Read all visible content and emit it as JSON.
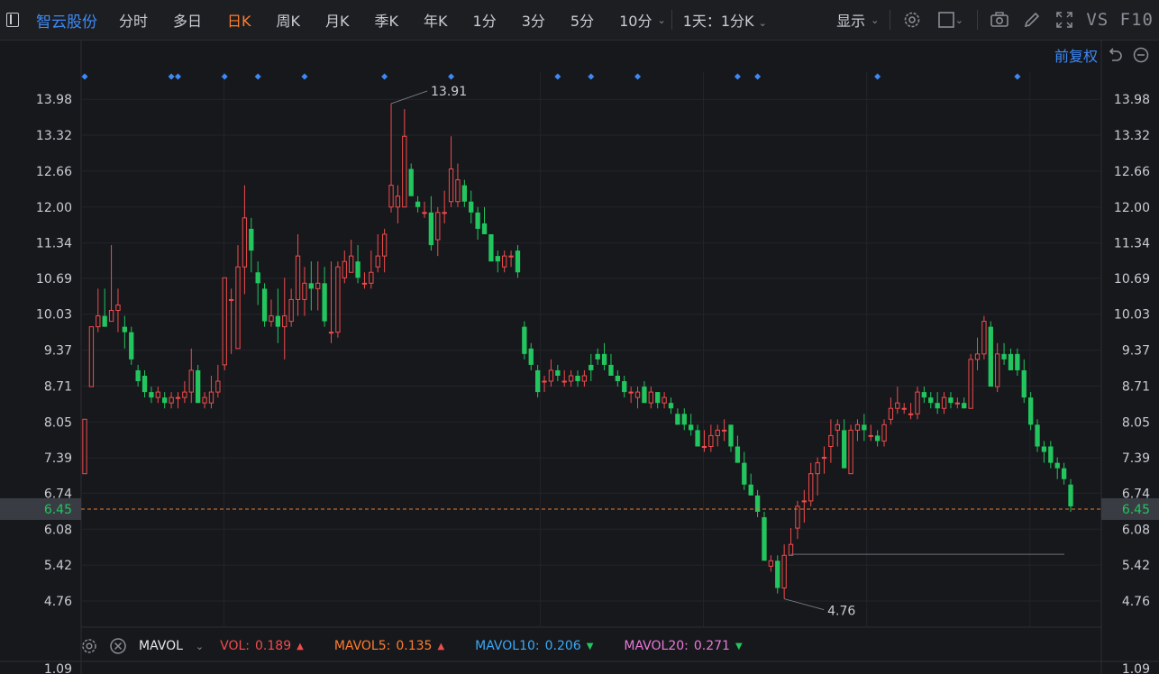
{
  "toolbar": {
    "stock_name": "智云股份",
    "periods": [
      "分时",
      "多日",
      "日K",
      "周K",
      "月K",
      "季K",
      "年K",
      "1分",
      "3分",
      "5分",
      "10分"
    ],
    "active_period": "日K",
    "minute_period_select": "1天：1分K",
    "display_label": "显示",
    "vs_f10": "VS F10"
  },
  "adjust": {
    "label": "前复权"
  },
  "colors": {
    "up": "#f04c4c",
    "down": "#22c55e",
    "accent": "#3d8af7",
    "active": "#ff7d2e",
    "price_line": "#e77b2d"
  },
  "icons": [
    "sidebar-icon",
    "gear-icon",
    "square-icon",
    "camera-icon",
    "pencil-icon",
    "fullscreen-icon",
    "undo-icon",
    "minus-circle-icon",
    "close-circle-icon"
  ],
  "chart_data": {
    "type": "candlestick",
    "y_ticks": [
      "13.98",
      "13.32",
      "12.66",
      "12.00",
      "11.34",
      "10.69",
      "10.03",
      "9.37",
      "8.71",
      "8.05",
      "7.39",
      "6.74",
      "6.08",
      "5.42",
      "4.76"
    ],
    "ylim": [
      4.28,
      14.48
    ],
    "current_price": "6.45",
    "high_label": "13.91",
    "low_label": "4.76",
    "volume_axis_top": "1.09",
    "candles": [
      [
        7.1,
        8.1,
        7.1,
        8.1
      ],
      [
        8.7,
        9.8,
        8.7,
        9.8
      ],
      [
        9.8,
        10.5,
        9.7,
        10.0
      ],
      [
        10.0,
        10.5,
        9.8,
        9.8
      ],
      [
        9.9,
        11.3,
        9.9,
        10.1
      ],
      [
        10.1,
        10.5,
        9.7,
        10.2
      ],
      [
        9.8,
        10.0,
        9.4,
        9.7
      ],
      [
        9.7,
        9.8,
        9.1,
        9.2
      ],
      [
        9.0,
        9.1,
        8.7,
        8.8
      ],
      [
        8.9,
        9.0,
        8.5,
        8.6
      ],
      [
        8.6,
        8.7,
        8.4,
        8.5
      ],
      [
        8.5,
        8.7,
        8.4,
        8.6
      ],
      [
        8.5,
        8.6,
        8.3,
        8.4
      ],
      [
        8.4,
        8.6,
        8.3,
        8.5
      ],
      [
        8.5,
        8.6,
        8.3,
        8.5
      ],
      [
        8.5,
        8.8,
        8.4,
        8.6
      ],
      [
        8.6,
        9.4,
        8.4,
        9.0
      ],
      [
        9.0,
        9.1,
        8.4,
        8.4
      ],
      [
        8.4,
        8.6,
        8.3,
        8.5
      ],
      [
        8.4,
        8.9,
        8.3,
        8.6
      ],
      [
        8.6,
        9.1,
        8.5,
        8.8
      ],
      [
        9.1,
        10.7,
        9.0,
        10.7
      ],
      [
        10.3,
        10.5,
        9.3,
        10.3
      ],
      [
        9.4,
        11.3,
        9.4,
        10.9
      ],
      [
        10.9,
        12.4,
        10.4,
        11.8
      ],
      [
        11.6,
        11.8,
        10.8,
        11.2
      ],
      [
        10.8,
        11.0,
        10.2,
        10.6
      ],
      [
        10.5,
        10.6,
        9.8,
        9.9
      ],
      [
        9.9,
        10.3,
        9.8,
        10.0
      ],
      [
        10.0,
        10.5,
        9.5,
        9.8
      ],
      [
        9.8,
        10.7,
        9.2,
        10.0
      ],
      [
        9.9,
        10.5,
        9.8,
        10.3
      ],
      [
        10.3,
        11.5,
        10.0,
        11.1
      ],
      [
        10.3,
        10.9,
        10.0,
        10.6
      ],
      [
        10.6,
        11.0,
        10.1,
        10.5
      ],
      [
        10.5,
        11.0,
        10.1,
        10.6
      ],
      [
        10.6,
        10.9,
        9.8,
        9.9
      ],
      [
        9.7,
        11.0,
        9.5,
        9.7
      ],
      [
        9.7,
        11.0,
        9.6,
        10.9
      ],
      [
        10.7,
        11.2,
        10.6,
        11.0
      ],
      [
        10.8,
        11.4,
        10.8,
        11.1
      ],
      [
        11.0,
        11.3,
        10.6,
        10.7
      ],
      [
        10.6,
        10.8,
        10.5,
        10.6
      ],
      [
        10.6,
        11.2,
        10.5,
        10.8
      ],
      [
        10.9,
        11.5,
        10.8,
        11.1
      ],
      [
        11.1,
        11.6,
        10.8,
        11.5
      ],
      [
        12.0,
        13.9,
        11.9,
        12.4
      ],
      [
        12.0,
        12.4,
        11.7,
        12.2
      ],
      [
        12.0,
        13.8,
        12.0,
        13.3
      ],
      [
        12.7,
        12.8,
        12.2,
        12.2
      ],
      [
        12.1,
        12.2,
        11.9,
        12.0
      ],
      [
        11.9,
        12.1,
        11.8,
        11.9
      ],
      [
        11.9,
        12.2,
        11.2,
        11.3
      ],
      [
        11.4,
        12.0,
        11.1,
        11.9
      ],
      [
        11.9,
        12.3,
        11.7,
        11.9
      ],
      [
        12.1,
        13.3,
        12.0,
        12.7
      ],
      [
        12.1,
        12.8,
        12.0,
        12.5
      ],
      [
        12.4,
        12.5,
        12.0,
        12.1
      ],
      [
        12.1,
        12.3,
        11.7,
        11.9
      ],
      [
        11.9,
        12.0,
        11.4,
        11.6
      ],
      [
        11.7,
        12.0,
        11.5,
        11.5
      ],
      [
        11.5,
        11.5,
        11.0,
        11.0
      ],
      [
        11.1,
        11.2,
        10.8,
        11.0
      ],
      [
        10.9,
        11.2,
        10.8,
        11.1
      ],
      [
        11.1,
        11.2,
        10.9,
        11.1
      ],
      [
        11.2,
        11.3,
        10.7,
        10.8
      ],
      [
        9.8,
        9.9,
        9.2,
        9.3
      ],
      [
        9.4,
        9.5,
        9.0,
        9.1
      ],
      [
        9.0,
        9.1,
        8.5,
        8.6
      ],
      [
        8.8,
        8.9,
        8.6,
        8.8
      ],
      [
        8.8,
        9.2,
        8.7,
        9.0
      ],
      [
        9.0,
        9.1,
        8.8,
        8.9
      ],
      [
        8.8,
        9.0,
        8.7,
        8.8
      ],
      [
        8.8,
        9.0,
        8.7,
        8.9
      ],
      [
        8.9,
        9.0,
        8.7,
        8.8
      ],
      [
        8.8,
        9.0,
        8.7,
        8.9
      ],
      [
        9.1,
        9.3,
        8.8,
        9.0
      ],
      [
        9.3,
        9.4,
        9.1,
        9.2
      ],
      [
        9.3,
        9.5,
        9.0,
        9.1
      ],
      [
        9.1,
        9.3,
        8.9,
        8.9
      ],
      [
        8.9,
        9.0,
        8.7,
        8.8
      ],
      [
        8.8,
        8.9,
        8.5,
        8.6
      ],
      [
        8.6,
        8.7,
        8.4,
        8.6
      ],
      [
        8.5,
        8.7,
        8.3,
        8.6
      ],
      [
        8.7,
        8.8,
        8.4,
        8.4
      ],
      [
        8.4,
        8.7,
        8.3,
        8.6
      ],
      [
        8.6,
        8.6,
        8.3,
        8.4
      ],
      [
        8.4,
        8.6,
        8.3,
        8.5
      ],
      [
        8.4,
        8.5,
        8.2,
        8.3
      ],
      [
        8.2,
        8.3,
        8.0,
        8.0
      ],
      [
        8.2,
        8.3,
        7.9,
        8.0
      ],
      [
        8.0,
        8.2,
        7.8,
        7.9
      ],
      [
        7.9,
        8.0,
        7.6,
        7.6
      ],
      [
        7.6,
        7.9,
        7.5,
        7.6
      ],
      [
        7.6,
        8.0,
        7.5,
        7.8
      ],
      [
        7.8,
        8.0,
        7.6,
        7.9
      ],
      [
        7.9,
        8.1,
        7.7,
        7.9
      ],
      [
        8.0,
        8.0,
        7.5,
        7.6
      ],
      [
        7.6,
        7.8,
        7.3,
        7.3
      ],
      [
        7.3,
        7.5,
        6.8,
        6.9
      ],
      [
        6.9,
        7.1,
        6.7,
        6.7
      ],
      [
        6.7,
        6.8,
        6.3,
        6.4
      ],
      [
        6.3,
        6.4,
        5.5,
        5.5
      ],
      [
        5.4,
        5.6,
        5.3,
        5.5
      ],
      [
        5.5,
        5.6,
        4.9,
        5.0
      ],
      [
        5.0,
        5.8,
        4.8,
        5.6
      ],
      [
        5.6,
        6.1,
        5.6,
        5.8
      ],
      [
        6.1,
        6.6,
        5.9,
        6.5
      ],
      [
        6.6,
        6.8,
        6.2,
        6.6
      ],
      [
        6.6,
        7.3,
        6.5,
        7.1
      ],
      [
        7.1,
        7.4,
        6.7,
        7.3
      ],
      [
        7.4,
        7.6,
        7.1,
        7.4
      ],
      [
        7.6,
        8.1,
        7.3,
        7.8
      ],
      [
        7.9,
        8.1,
        7.6,
        8.0
      ],
      [
        7.9,
        8.1,
        7.2,
        7.2
      ],
      [
        7.1,
        8.0,
        7.1,
        7.9
      ],
      [
        7.9,
        8.1,
        7.7,
        8.0
      ],
      [
        8.0,
        8.2,
        7.7,
        7.9
      ],
      [
        7.8,
        8.0,
        7.7,
        7.8
      ],
      [
        7.8,
        7.9,
        7.6,
        7.7
      ],
      [
        7.7,
        8.1,
        7.6,
        8.0
      ],
      [
        8.1,
        8.5,
        8.0,
        8.3
      ],
      [
        8.3,
        8.7,
        8.2,
        8.4
      ],
      [
        8.3,
        8.4,
        8.2,
        8.3
      ],
      [
        8.2,
        8.4,
        8.1,
        8.2
      ],
      [
        8.2,
        8.7,
        8.1,
        8.6
      ],
      [
        8.6,
        8.7,
        8.4,
        8.5
      ],
      [
        8.5,
        8.6,
        8.3,
        8.4
      ],
      [
        8.4,
        8.6,
        8.2,
        8.3
      ],
      [
        8.3,
        8.6,
        8.2,
        8.5
      ],
      [
        8.5,
        8.6,
        8.3,
        8.4
      ],
      [
        8.4,
        8.5,
        8.3,
        8.4
      ],
      [
        8.4,
        8.5,
        8.3,
        8.3
      ],
      [
        8.3,
        9.3,
        8.3,
        9.2
      ],
      [
        9.2,
        9.6,
        9.0,
        9.3
      ],
      [
        9.3,
        10.0,
        9.2,
        9.9
      ],
      [
        9.8,
        9.9,
        8.7,
        8.7
      ],
      [
        8.7,
        9.5,
        8.6,
        9.3
      ],
      [
        9.3,
        9.5,
        9.1,
        9.2
      ],
      [
        9.3,
        9.4,
        9.0,
        9.0
      ],
      [
        9.3,
        9.4,
        8.9,
        9.0
      ],
      [
        9.0,
        9.2,
        8.4,
        8.5
      ],
      [
        8.5,
        8.6,
        7.9,
        8.0
      ],
      [
        8.0,
        8.1,
        7.5,
        7.6
      ],
      [
        7.6,
        7.7,
        7.3,
        7.5
      ],
      [
        7.6,
        7.7,
        7.2,
        7.3
      ],
      [
        7.3,
        7.4,
        7.0,
        7.2
      ],
      [
        7.2,
        7.3,
        6.9,
        7.0
      ],
      [
        6.9,
        7.0,
        6.4,
        6.5
      ]
    ],
    "event_markers": [
      0,
      13,
      14,
      21,
      26,
      33,
      45,
      55,
      71,
      76,
      83,
      98,
      101,
      119,
      140,
      172,
      182
    ],
    "vline_fracs": [
      0.14,
      0.45,
      0.61,
      0.77,
      0.93
    ]
  },
  "volume_indicator": {
    "name": "MAVOL",
    "items": [
      {
        "label": "VOL:",
        "value": "0.189",
        "color": "#f04c4c",
        "dir": "up"
      },
      {
        "label": "MAVOL5:",
        "value": "0.135",
        "color": "#ff7d2e",
        "dir": "up"
      },
      {
        "label": "MAVOL10:",
        "value": "0.206",
        "color": "#3ba8f5",
        "dir": "down"
      },
      {
        "label": "MAVOL20:",
        "value": "0.271",
        "color": "#e879d9",
        "dir": "down"
      }
    ]
  }
}
